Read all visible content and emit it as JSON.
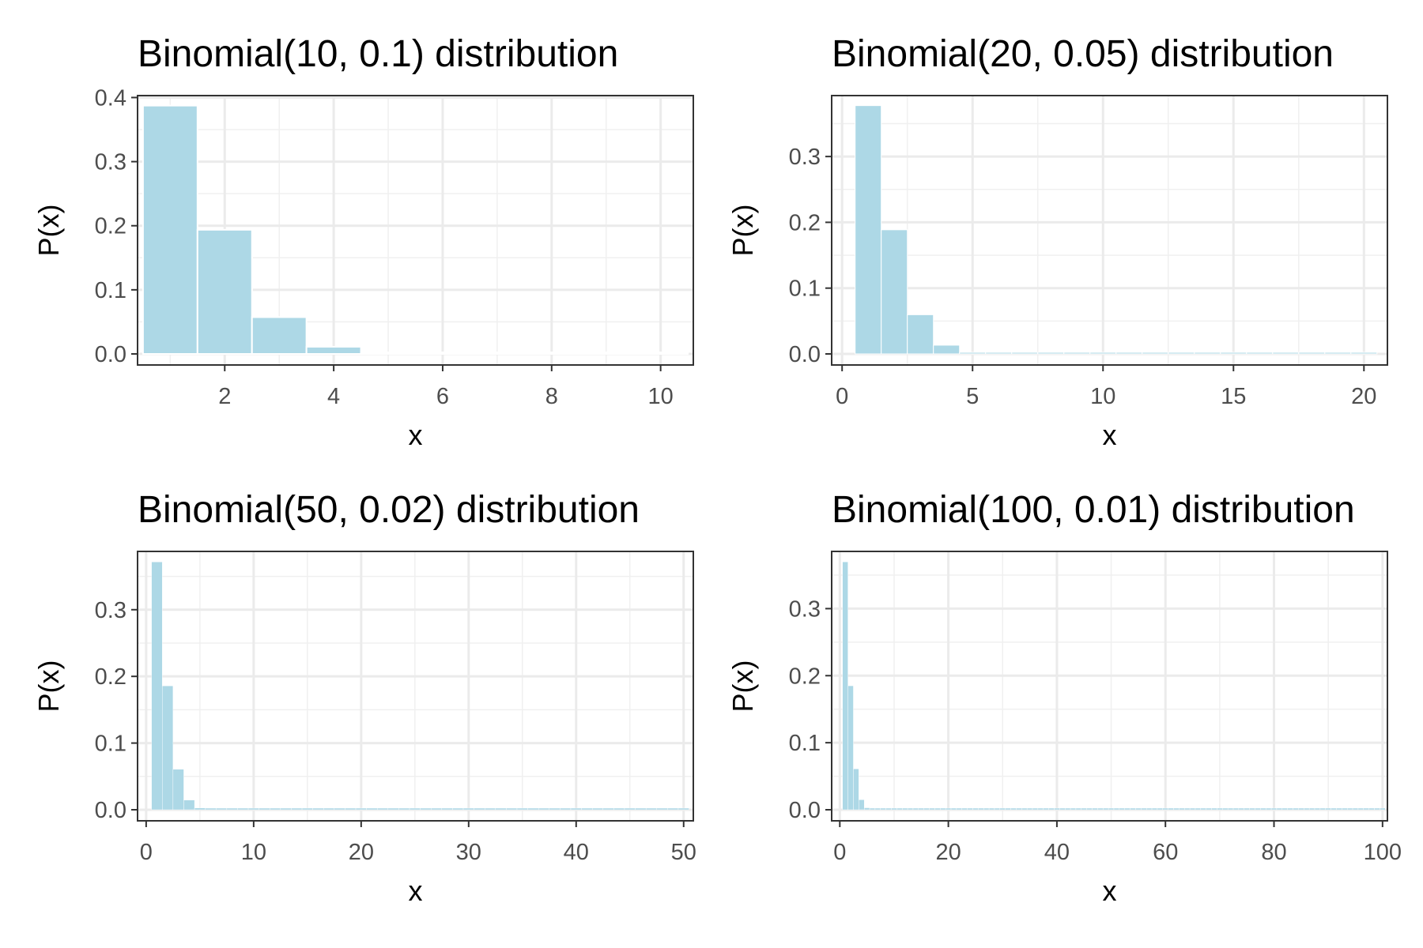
{
  "chart_data": [
    {
      "type": "bar",
      "title": "Binomial(10, 0.1) distribution",
      "xlabel": "x",
      "ylabel": "P(x)",
      "xlim": [
        0.5,
        10.5
      ],
      "ylim": [
        0,
        0.387
      ],
      "xticks": [
        2,
        4,
        6,
        8,
        10
      ],
      "xtick_labels": [
        "2",
        "4",
        "6",
        "8",
        "10"
      ],
      "yticks": [
        0,
        0.1,
        0.2,
        0.3,
        0.4
      ],
      "ytick_labels": [
        "0.0",
        "0.1",
        "0.2",
        "0.3",
        "0.4"
      ],
      "grid": true,
      "bar_color": "#add8e6",
      "x": [
        1,
        2,
        3,
        4,
        5,
        6,
        7,
        8,
        9,
        10
      ],
      "values": [
        0.3874,
        0.1937,
        0.0574,
        0.0112,
        0.0015,
        0.0001,
        0.0,
        0.0,
        0.0,
        0.0
      ]
    },
    {
      "type": "bar",
      "title": "Binomial(20, 0.05) distribution",
      "xlabel": "x",
      "ylabel": "P(x)",
      "xlim": [
        0,
        20.5
      ],
      "ylim": [
        0,
        0.377
      ],
      "xticks": [
        0,
        5,
        10,
        15,
        20
      ],
      "xtick_labels": [
        "0",
        "5",
        "10",
        "15",
        "20"
      ],
      "yticks": [
        0,
        0.1,
        0.2,
        0.3
      ],
      "ytick_labels": [
        "0.0",
        "0.1",
        "0.2",
        "0.3"
      ],
      "grid": true,
      "bar_color": "#add8e6",
      "x": [
        1,
        2,
        3,
        4,
        5,
        6,
        7,
        8,
        9,
        10,
        11,
        12,
        13,
        14,
        15,
        16,
        17,
        18,
        19,
        20
      ],
      "values": [
        0.3774,
        0.1887,
        0.0596,
        0.0133,
        0.0022,
        0.0003,
        0.0,
        0.0,
        0.0,
        0.0,
        0.0,
        0.0,
        0.0,
        0.0,
        0.0,
        0.0,
        0.0,
        0.0,
        0.0,
        0.0
      ]
    },
    {
      "type": "bar",
      "title": "Binomial(50, 0.02) distribution",
      "xlabel": "x",
      "ylabel": "P(x)",
      "xlim": [
        0,
        50.5
      ],
      "ylim": [
        0,
        0.372
      ],
      "xticks": [
        0,
        10,
        20,
        30,
        40,
        50
      ],
      "xtick_labels": [
        "0",
        "10",
        "20",
        "30",
        "40",
        "50"
      ],
      "yticks": [
        0,
        0.1,
        0.2,
        0.3
      ],
      "ytick_labels": [
        "0.0",
        "0.1",
        "0.2",
        "0.3"
      ],
      "grid": true,
      "bar_color": "#add8e6",
      "x": [
        1,
        2,
        3,
        4,
        5,
        6,
        7,
        8,
        9,
        10,
        11,
        12,
        13,
        14,
        15,
        16,
        17,
        18,
        19,
        20,
        21,
        22,
        23,
        24,
        25,
        26,
        27,
        28,
        29,
        30,
        31,
        32,
        33,
        34,
        35,
        36,
        37,
        38,
        39,
        40,
        41,
        42,
        43,
        44,
        45,
        46,
        47,
        48,
        49,
        50
      ],
      "values": [
        0.3716,
        0.1858,
        0.0607,
        0.0145,
        0.0027,
        0.0004,
        0.0001,
        0.0,
        0.0,
        0.0,
        0.0,
        0.0,
        0.0,
        0.0,
        0.0,
        0.0,
        0.0,
        0.0,
        0.0,
        0.0,
        0.0,
        0.0,
        0.0,
        0.0,
        0.0,
        0.0,
        0.0,
        0.0,
        0.0,
        0.0,
        0.0,
        0.0,
        0.0,
        0.0,
        0.0,
        0.0,
        0.0,
        0.0,
        0.0,
        0.0,
        0.0,
        0.0,
        0.0,
        0.0,
        0.0,
        0.0,
        0.0,
        0.0,
        0.0,
        0.0
      ]
    },
    {
      "type": "bar",
      "title": "Binomial(100, 0.01) distribution",
      "xlabel": "x",
      "ylabel": "P(x)",
      "xlim": [
        0,
        100.5
      ],
      "ylim": [
        0,
        0.37
      ],
      "xticks": [
        0,
        20,
        40,
        60,
        80,
        100
      ],
      "xtick_labels": [
        "0",
        "20",
        "40",
        "60",
        "80",
        "100"
      ],
      "yticks": [
        0,
        0.1,
        0.2,
        0.3
      ],
      "ytick_labels": [
        "0.0",
        "0.1",
        "0.2",
        "0.3"
      ],
      "grid": true,
      "bar_color": "#add8e6",
      "x": [
        1,
        2,
        3,
        4,
        5,
        6,
        7,
        8,
        9,
        10,
        11,
        12,
        13,
        14,
        15,
        16,
        17,
        18,
        19,
        20,
        21,
        22,
        23,
        24,
        25,
        26,
        27,
        28,
        29,
        30,
        31,
        32,
        33,
        34,
        35,
        36,
        37,
        38,
        39,
        40,
        41,
        42,
        43,
        44,
        45,
        46,
        47,
        48,
        49,
        50,
        51,
        52,
        53,
        54,
        55,
        56,
        57,
        58,
        59,
        60,
        61,
        62,
        63,
        64,
        65,
        66,
        67,
        68,
        69,
        70,
        71,
        72,
        73,
        74,
        75,
        76,
        77,
        78,
        79,
        80,
        81,
        82,
        83,
        84,
        85,
        86,
        87,
        88,
        89,
        90,
        91,
        92,
        93,
        94,
        95,
        96,
        97,
        98,
        99,
        100
      ],
      "values": [
        0.3697,
        0.1849,
        0.061,
        0.0149,
        0.0029,
        0.0005,
        0.0001,
        0.0,
        0.0,
        0.0,
        0.0,
        0.0,
        0.0,
        0.0,
        0.0,
        0.0,
        0.0,
        0.0,
        0.0,
        0.0,
        0.0,
        0.0,
        0.0,
        0.0,
        0.0,
        0.0,
        0.0,
        0.0,
        0.0,
        0.0,
        0.0,
        0.0,
        0.0,
        0.0,
        0.0,
        0.0,
        0.0,
        0.0,
        0.0,
        0.0,
        0.0,
        0.0,
        0.0,
        0.0,
        0.0,
        0.0,
        0.0,
        0.0,
        0.0,
        0.0,
        0.0,
        0.0,
        0.0,
        0.0,
        0.0,
        0.0,
        0.0,
        0.0,
        0.0,
        0.0,
        0.0,
        0.0,
        0.0,
        0.0,
        0.0,
        0.0,
        0.0,
        0.0,
        0.0,
        0.0,
        0.0,
        0.0,
        0.0,
        0.0,
        0.0,
        0.0,
        0.0,
        0.0,
        0.0,
        0.0,
        0.0,
        0.0,
        0.0,
        0.0,
        0.0,
        0.0,
        0.0,
        0.0,
        0.0,
        0.0,
        0.0,
        0.0,
        0.0,
        0.0,
        0.0,
        0.0,
        0.0,
        0.0,
        0.0,
        0.0
      ]
    }
  ]
}
